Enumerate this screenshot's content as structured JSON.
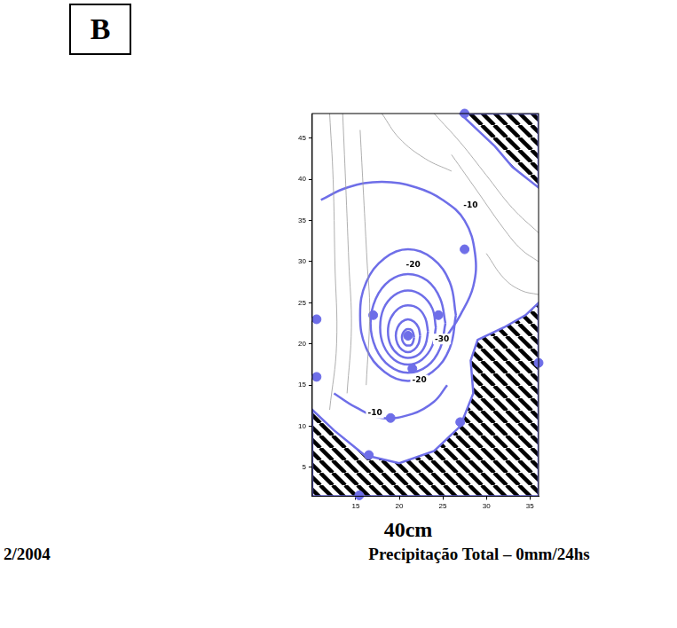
{
  "chart_data": {
    "type": "contour",
    "panel_label": "B",
    "depth_label": "40cm",
    "caption": "Precipitação Total – 0mm/24hs",
    "date": "2/2004",
    "xlim": [
      10,
      36
    ],
    "ylim": [
      1.5,
      48
    ],
    "xticks": [
      15,
      20,
      25,
      30,
      35
    ],
    "yticks": [
      5,
      10,
      15,
      20,
      25,
      30,
      35,
      40,
      45
    ],
    "grid": false,
    "color": "#6e6ee8",
    "topography": {
      "color": "#9a9a9a",
      "lines": [
        [
          [
            12,
            48
          ],
          [
            12.4,
            40
          ],
          [
            12.6,
            30
          ],
          [
            12.8,
            20
          ],
          [
            12,
            12
          ]
        ],
        [
          [
            13.5,
            48
          ],
          [
            13.9,
            38
          ],
          [
            14.2,
            30
          ],
          [
            14.5,
            22
          ],
          [
            14,
            14
          ]
        ],
        [
          [
            15.5,
            46
          ],
          [
            15.9,
            38
          ],
          [
            16.3,
            30
          ],
          [
            16.6,
            24
          ],
          [
            16.2,
            15
          ]
        ],
        [
          [
            24,
            48
          ],
          [
            27,
            44.5
          ],
          [
            30,
            40.5
          ],
          [
            33,
            36.5
          ],
          [
            36,
            33.5
          ]
        ],
        [
          [
            26,
            43
          ],
          [
            29,
            38.5
          ],
          [
            32,
            34
          ],
          [
            34,
            31.5
          ],
          [
            36,
            30
          ]
        ],
        [
          [
            30,
            31
          ],
          [
            32,
            28
          ],
          [
            34,
            26.5
          ],
          [
            36,
            26
          ]
        ],
        [
          [
            18,
            48
          ],
          [
            20,
            45
          ],
          [
            23,
            42.5
          ],
          [
            26,
            41
          ]
        ]
      ]
    },
    "contours": [
      [
        [
          11,
          37.5
        ],
        [
          14,
          39
        ],
        [
          18,
          39.7
        ],
        [
          22,
          39
        ],
        [
          25,
          37.5
        ],
        [
          27.5,
          35
        ],
        [
          28.7,
          31
        ],
        [
          28.5,
          27
        ],
        [
          27,
          23.5
        ],
        [
          25.5,
          21
        ]
      ],
      [
        [
          12.5,
          14
        ],
        [
          15,
          12.3
        ],
        [
          18,
          11
        ],
        [
          21.5,
          11.5
        ],
        [
          24,
          13
        ],
        [
          25.5,
          15
        ]
      ],
      [
        [
          26.5,
          23.5
        ],
        [
          25.8,
          27.5
        ],
        [
          23.8,
          30.4
        ],
        [
          21,
          31.5
        ],
        [
          18.3,
          30.4
        ],
        [
          16.2,
          27.5
        ],
        [
          15.5,
          23.5
        ],
        [
          16.2,
          19.5
        ],
        [
          18.3,
          16.6
        ],
        [
          21,
          15.5
        ],
        [
          23.8,
          16.6
        ],
        [
          25.8,
          19.5
        ],
        [
          26.5,
          23.5
        ]
      ],
      [
        [
          25.3,
          22.5
        ],
        [
          24.7,
          25.5
        ],
        [
          23.2,
          27.7
        ],
        [
          21,
          28.5
        ],
        [
          18.9,
          27.7
        ],
        [
          17.3,
          25.5
        ],
        [
          16.7,
          22.5
        ],
        [
          17.3,
          19.5
        ],
        [
          18.9,
          17.3
        ],
        [
          21,
          16.5
        ],
        [
          23.2,
          17.3
        ],
        [
          24.7,
          19.5
        ],
        [
          25.3,
          22.5
        ]
      ],
      [
        [
          24.2,
          22
        ],
        [
          23.8,
          24.3
        ],
        [
          22.6,
          25.9
        ],
        [
          21,
          26.5
        ],
        [
          19.4,
          25.9
        ],
        [
          18.2,
          24.3
        ],
        [
          17.8,
          22
        ],
        [
          18.2,
          19.8
        ],
        [
          19.4,
          18.1
        ],
        [
          21,
          17.5
        ],
        [
          22.6,
          18.1
        ],
        [
          23.8,
          19.8
        ],
        [
          24.2,
          22
        ]
      ],
      [
        [
          23.3,
          21.5
        ],
        [
          23,
          23.1
        ],
        [
          22.2,
          24.3
        ],
        [
          21,
          24.7
        ],
        [
          19.9,
          24.3
        ],
        [
          19,
          23.1
        ],
        [
          18.7,
          21.5
        ],
        [
          19,
          19.9
        ],
        [
          19.9,
          18.7
        ],
        [
          21,
          18.3
        ],
        [
          22.2,
          18.7
        ],
        [
          23,
          19.9
        ],
        [
          23.3,
          21.5
        ]
      ],
      [
        [
          22.4,
          21
        ],
        [
          22.2,
          22
        ],
        [
          21.7,
          22.7
        ],
        [
          21,
          23
        ],
        [
          20.3,
          22.7
        ],
        [
          19.8,
          22
        ],
        [
          19.6,
          21
        ],
        [
          19.8,
          20
        ],
        [
          20.3,
          19.3
        ],
        [
          21,
          19
        ],
        [
          21.7,
          19.3
        ],
        [
          22.2,
          20
        ],
        [
          22.4,
          21
        ]
      ],
      [
        [
          21.7,
          20.8
        ],
        [
          21.6,
          21.3
        ],
        [
          21.4,
          21.7
        ],
        [
          21,
          21.8
        ],
        [
          20.7,
          21.7
        ],
        [
          20.4,
          21.3
        ],
        [
          20.3,
          20.8
        ],
        [
          20.4,
          20.3
        ],
        [
          20.7,
          19.9
        ],
        [
          21,
          19.8
        ],
        [
          21.4,
          19.9
        ],
        [
          21.6,
          20.3
        ],
        [
          21.7,
          20.8
        ]
      ]
    ],
    "contour_labels": [
      {
        "text": "-10",
        "x": 28.2,
        "y": 36.8
      },
      {
        "text": "-20",
        "x": 21.6,
        "y": 29.6
      },
      {
        "text": "-30",
        "x": 24.9,
        "y": 20.6
      },
      {
        "text": "-20",
        "x": 22.3,
        "y": 15.6
      },
      {
        "text": "-10",
        "x": 17.2,
        "y": 11.6
      }
    ],
    "stations": [
      [
        27.5,
        31.5
      ],
      [
        17,
        23.5
      ],
      [
        24.5,
        23.5
      ],
      [
        21.5,
        17
      ],
      [
        21,
        21
      ],
      [
        19,
        11
      ],
      [
        27,
        10.5
      ],
      [
        16.5,
        6.5
      ],
      [
        10.5,
        23
      ],
      [
        10.5,
        16
      ],
      [
        36,
        17.7
      ],
      [
        15.4,
        1.6
      ],
      [
        27.5,
        48
      ]
    ],
    "masked_regions": {
      "color": "#000000",
      "regions": [
        [
          [
            27,
            48
          ],
          [
            29,
            46
          ],
          [
            31,
            44
          ],
          [
            33,
            41.5
          ],
          [
            36,
            39
          ],
          [
            36,
            48
          ]
        ],
        [
          [
            10,
            12
          ],
          [
            12.5,
            9.5
          ],
          [
            16,
            6.5
          ],
          [
            20,
            5.5
          ],
          [
            24,
            7
          ],
          [
            27,
            10
          ],
          [
            28.5,
            14
          ],
          [
            28.2,
            18
          ],
          [
            29,
            20.5
          ],
          [
            32,
            22
          ],
          [
            34.5,
            23.5
          ],
          [
            36,
            25
          ],
          [
            36,
            1.5
          ],
          [
            10,
            1.5
          ]
        ]
      ]
    }
  }
}
